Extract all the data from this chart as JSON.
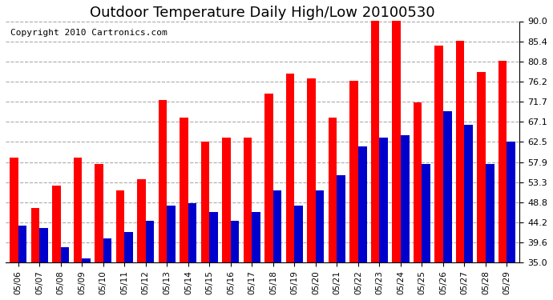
{
  "title": "Outdoor Temperature Daily High/Low 20100530",
  "copyright": "Copyright 2010 Cartronics.com",
  "dates": [
    "05/06",
    "05/07",
    "05/08",
    "05/09",
    "05/10",
    "05/11",
    "05/12",
    "05/13",
    "05/14",
    "05/15",
    "05/16",
    "05/17",
    "05/18",
    "05/19",
    "05/20",
    "05/21",
    "05/22",
    "05/23",
    "05/24",
    "05/25",
    "05/26",
    "05/27",
    "05/28",
    "05/29"
  ],
  "highs": [
    59.0,
    47.5,
    52.5,
    59.0,
    57.5,
    51.5,
    54.0,
    72.0,
    68.0,
    62.5,
    63.5,
    63.5,
    73.5,
    78.0,
    77.0,
    68.0,
    76.5,
    90.5,
    90.5,
    71.5,
    84.5,
    85.5,
    78.5,
    81.0
  ],
  "lows": [
    43.5,
    43.0,
    38.5,
    36.0,
    40.5,
    42.0,
    44.5,
    48.0,
    48.5,
    46.5,
    44.5,
    46.5,
    51.5,
    48.0,
    51.5,
    55.0,
    61.5,
    63.5,
    64.0,
    57.5,
    69.5,
    66.5,
    57.5,
    62.5
  ],
  "high_color": "#FF0000",
  "low_color": "#0000CC",
  "ylim": [
    35.0,
    90.0
  ],
  "yticks": [
    35.0,
    39.6,
    44.2,
    48.8,
    53.3,
    57.9,
    62.5,
    67.1,
    71.7,
    76.2,
    80.8,
    85.4,
    90.0
  ],
  "background_color": "#FFFFFF",
  "plot_bg_color": "#FFFFFF",
  "grid_color": "#AAAAAA",
  "title_fontsize": 13,
  "copyright_fontsize": 8
}
